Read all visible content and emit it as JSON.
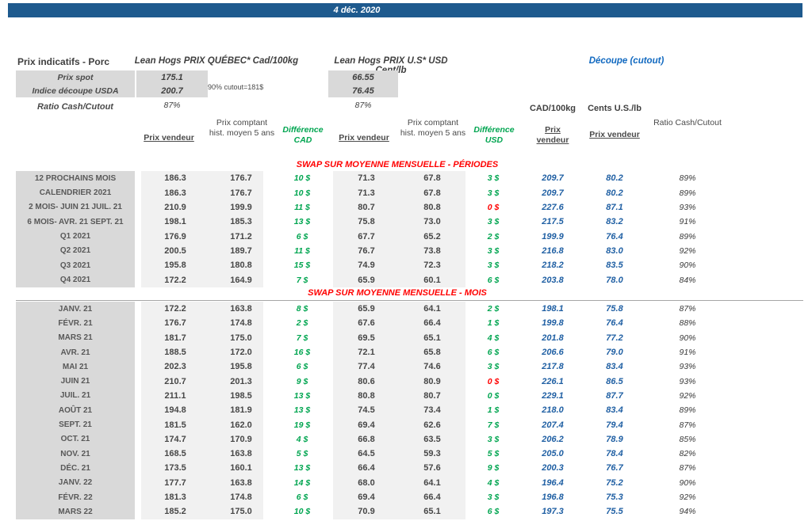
{
  "banner": {
    "date": "4 déc. 2020"
  },
  "header": {
    "title": "Prix indicatifs - Porc",
    "cad_section_title": "Lean Hogs PRIX QUÉBEC* Cad/100kg",
    "usd_section_title": "Lean Hogs PRIX U.S* USD Cent/lb",
    "cutout_title": "Découpe (cutout)",
    "cutout_note": "90% cutout=181$",
    "spot_rows": [
      {
        "label": "Prix spot",
        "cad": "175.1",
        "usd": "66.55"
      },
      {
        "label": "Indice découpe USDA",
        "cad": "200.7",
        "usd": "76.45"
      }
    ],
    "ratio_label": "Ratio Cash/Cutout",
    "ratio_cad": "87%",
    "ratio_usd": "87%",
    "cutout_unit_cad": "CAD/100kg",
    "cutout_unit_usd": "Cents U.S./lb"
  },
  "columns": {
    "prix_vendeur": "Prix vendeur",
    "prix_comptant": "Prix comptant hist. moyen 5 ans",
    "difference_cad": "Différence CAD",
    "difference_usd": "Différence USD",
    "prix_vendeur_cutout_cad": "Prix vendeur",
    "prix_vendeur_cutout_usd": "Prix vendeur",
    "ratio": "Ratio Cash/Cutout"
  },
  "sections": [
    {
      "title": "SWAP SUR MOYENNE MENSUELLE - PÉRIODES",
      "rows": [
        {
          "label": "12 PROCHAINS MOIS",
          "cad_v": "186.3",
          "cad_h": "176.7",
          "diff_cad": "10 $",
          "usd_v": "71.3",
          "usd_h": "67.8",
          "diff_usd": "3 $",
          "diff_usd_red": false,
          "cut_cad": "209.7",
          "cut_usd": "80.2",
          "ratio": "89%"
        },
        {
          "label": "CALENDRIER 2021",
          "cad_v": "186.3",
          "cad_h": "176.7",
          "diff_cad": "10 $",
          "usd_v": "71.3",
          "usd_h": "67.8",
          "diff_usd": "3 $",
          "diff_usd_red": false,
          "cut_cad": "209.7",
          "cut_usd": "80.2",
          "ratio": "89%"
        },
        {
          "label": "2 MOIS- JUIN 21 JUIL. 21",
          "cad_v": "210.9",
          "cad_h": "199.9",
          "diff_cad": "11 $",
          "usd_v": "80.7",
          "usd_h": "80.8",
          "diff_usd": "0 $",
          "diff_usd_red": true,
          "cut_cad": "227.6",
          "cut_usd": "87.1",
          "ratio": "93%"
        },
        {
          "label": "6 MOIS- AVR. 21 SEPT. 21",
          "cad_v": "198.1",
          "cad_h": "185.3",
          "diff_cad": "13 $",
          "usd_v": "75.8",
          "usd_h": "73.0",
          "diff_usd": "3 $",
          "diff_usd_red": false,
          "cut_cad": "217.5",
          "cut_usd": "83.2",
          "ratio": "91%"
        },
        {
          "label": "Q1 2021",
          "cad_v": "176.9",
          "cad_h": "171.2",
          "diff_cad": "6 $",
          "usd_v": "67.7",
          "usd_h": "65.2",
          "diff_usd": "2 $",
          "diff_usd_red": false,
          "cut_cad": "199.9",
          "cut_usd": "76.4",
          "ratio": "89%"
        },
        {
          "label": "Q2 2021",
          "cad_v": "200.5",
          "cad_h": "189.7",
          "diff_cad": "11 $",
          "usd_v": "76.7",
          "usd_h": "73.8",
          "diff_usd": "3 $",
          "diff_usd_red": false,
          "cut_cad": "216.8",
          "cut_usd": "83.0",
          "ratio": "92%"
        },
        {
          "label": "Q3 2021",
          "cad_v": "195.8",
          "cad_h": "180.8",
          "diff_cad": "15 $",
          "usd_v": "74.9",
          "usd_h": "72.3",
          "diff_usd": "3 $",
          "diff_usd_red": false,
          "cut_cad": "218.2",
          "cut_usd": "83.5",
          "ratio": "90%"
        },
        {
          "label": "Q4 2021",
          "cad_v": "172.2",
          "cad_h": "164.9",
          "diff_cad": "7 $",
          "usd_v": "65.9",
          "usd_h": "60.1",
          "diff_usd": "6 $",
          "diff_usd_red": false,
          "cut_cad": "203.8",
          "cut_usd": "78.0",
          "ratio": "84%"
        }
      ]
    },
    {
      "title": "SWAP SUR MOYENNE MENSUELLE - MOIS",
      "rows": [
        {
          "label": "JANV. 21",
          "cad_v": "172.2",
          "cad_h": "163.8",
          "diff_cad": "8 $",
          "usd_v": "65.9",
          "usd_h": "64.1",
          "diff_usd": "2 $",
          "diff_usd_red": false,
          "cut_cad": "198.1",
          "cut_usd": "75.8",
          "ratio": "87%"
        },
        {
          "label": "FÉVR. 21",
          "cad_v": "176.7",
          "cad_h": "174.8",
          "diff_cad": "2 $",
          "usd_v": "67.6",
          "usd_h": "66.4",
          "diff_usd": "1 $",
          "diff_usd_red": false,
          "cut_cad": "199.8",
          "cut_usd": "76.4",
          "ratio": "88%"
        },
        {
          "label": "MARS 21",
          "cad_v": "181.7",
          "cad_h": "175.0",
          "diff_cad": "7 $",
          "usd_v": "69.5",
          "usd_h": "65.1",
          "diff_usd": "4 $",
          "diff_usd_red": false,
          "cut_cad": "201.8",
          "cut_usd": "77.2",
          "ratio": "90%"
        },
        {
          "label": "AVR. 21",
          "cad_v": "188.5",
          "cad_h": "172.0",
          "diff_cad": "16 $",
          "usd_v": "72.1",
          "usd_h": "65.8",
          "diff_usd": "6 $",
          "diff_usd_red": false,
          "cut_cad": "206.6",
          "cut_usd": "79.0",
          "ratio": "91%"
        },
        {
          "label": "MAI 21",
          "cad_v": "202.3",
          "cad_h": "195.8",
          "diff_cad": "6 $",
          "usd_v": "77.4",
          "usd_h": "74.6",
          "diff_usd": "3 $",
          "diff_usd_red": false,
          "cut_cad": "217.8",
          "cut_usd": "83.4",
          "ratio": "93%"
        },
        {
          "label": "JUIN 21",
          "cad_v": "210.7",
          "cad_h": "201.3",
          "diff_cad": "9 $",
          "usd_v": "80.6",
          "usd_h": "80.9",
          "diff_usd": "0 $",
          "diff_usd_red": true,
          "cut_cad": "226.1",
          "cut_usd": "86.5",
          "ratio": "93%"
        },
        {
          "label": "JUIL. 21",
          "cad_v": "211.1",
          "cad_h": "198.5",
          "diff_cad": "13 $",
          "usd_v": "80.8",
          "usd_h": "80.7",
          "diff_usd": "0 $",
          "diff_usd_red": false,
          "cut_cad": "229.1",
          "cut_usd": "87.7",
          "ratio": "92%"
        },
        {
          "label": "AOÛT 21",
          "cad_v": "194.8",
          "cad_h": "181.9",
          "diff_cad": "13 $",
          "usd_v": "74.5",
          "usd_h": "73.4",
          "diff_usd": "1 $",
          "diff_usd_red": false,
          "cut_cad": "218.0",
          "cut_usd": "83.4",
          "ratio": "89%"
        },
        {
          "label": "SEPT. 21",
          "cad_v": "181.5",
          "cad_h": "162.0",
          "diff_cad": "19 $",
          "usd_v": "69.4",
          "usd_h": "62.6",
          "diff_usd": "7 $",
          "diff_usd_red": false,
          "cut_cad": "207.4",
          "cut_usd": "79.4",
          "ratio": "87%"
        },
        {
          "label": "OCT. 21",
          "cad_v": "174.7",
          "cad_h": "170.9",
          "diff_cad": "4 $",
          "usd_v": "66.8",
          "usd_h": "63.5",
          "diff_usd": "3 $",
          "diff_usd_red": false,
          "cut_cad": "206.2",
          "cut_usd": "78.9",
          "ratio": "85%"
        },
        {
          "label": "NOV. 21",
          "cad_v": "168.5",
          "cad_h": "163.8",
          "diff_cad": "5 $",
          "usd_v": "64.5",
          "usd_h": "59.3",
          "diff_usd": "5 $",
          "diff_usd_red": false,
          "cut_cad": "205.0",
          "cut_usd": "78.4",
          "ratio": "82%"
        },
        {
          "label": "DÉC. 21",
          "cad_v": "173.5",
          "cad_h": "160.1",
          "diff_cad": "13 $",
          "usd_v": "66.4",
          "usd_h": "57.6",
          "diff_usd": "9 $",
          "diff_usd_red": false,
          "cut_cad": "200.3",
          "cut_usd": "76.7",
          "ratio": "87%"
        },
        {
          "label": "JANV. 22",
          "cad_v": "177.7",
          "cad_h": "163.8",
          "diff_cad": "14 $",
          "usd_v": "68.0",
          "usd_h": "64.1",
          "diff_usd": "4 $",
          "diff_usd_red": false,
          "cut_cad": "196.4",
          "cut_usd": "75.2",
          "ratio": "90%"
        },
        {
          "label": "FÉVR. 22",
          "cad_v": "181.3",
          "cad_h": "174.8",
          "diff_cad": "6 $",
          "usd_v": "69.4",
          "usd_h": "66.4",
          "diff_usd": "3 $",
          "diff_usd_red": false,
          "cut_cad": "196.8",
          "cut_usd": "75.3",
          "ratio": "92%"
        },
        {
          "label": "MARS 22",
          "cad_v": "185.2",
          "cad_h": "175.0",
          "diff_cad": "10 $",
          "usd_v": "70.9",
          "usd_h": "65.1",
          "diff_usd": "6 $",
          "diff_usd_red": false,
          "cut_cad": "197.3",
          "cut_usd": "75.5",
          "ratio": "94%"
        }
      ]
    }
  ],
  "colors": {
    "banner_blue": "#1E5A8E",
    "cutout_title_blue": "#1169C0",
    "value_blue": "#1F5FA3",
    "diff_green": "#00A550",
    "alert_red": "#FF0000",
    "label_cell_gray": "#D9D9D9",
    "data_block_gray": "#F1F1F1"
  }
}
